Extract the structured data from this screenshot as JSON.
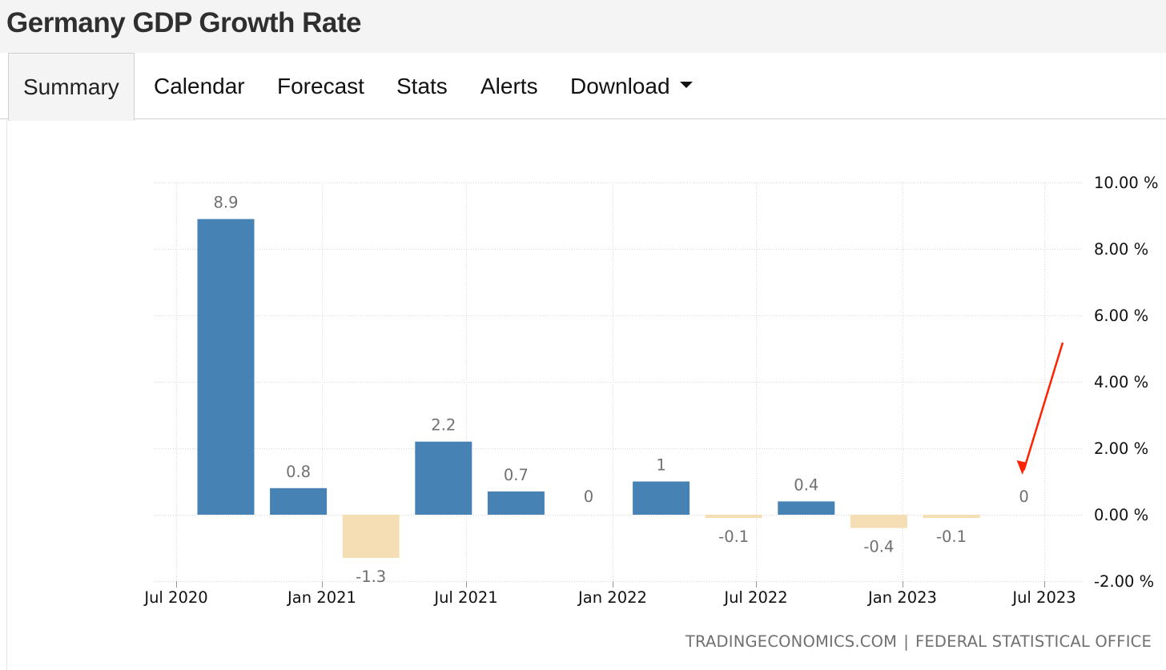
{
  "header": {
    "title": "Germany GDP Growth Rate"
  },
  "tabs": [
    {
      "label": "Summary",
      "active": true
    },
    {
      "label": "Calendar"
    },
    {
      "label": "Forecast"
    },
    {
      "label": "Stats"
    },
    {
      "label": "Alerts"
    },
    {
      "label": "Download",
      "dropdown": true
    }
  ],
  "chart_data": {
    "type": "bar",
    "title": "Germany GDP Growth Rate",
    "categories": [
      "Q3 2020",
      "Q4 2020",
      "Q1 2021",
      "Q2 2021",
      "Q3 2021",
      "Q4 2021",
      "Q1 2022",
      "Q2 2022",
      "Q3 2022",
      "Q4 2022",
      "Q1 2023",
      "Q2 2023"
    ],
    "values": [
      8.9,
      0.8,
      -1.3,
      2.2,
      0.7,
      0,
      1,
      -0.1,
      0.4,
      -0.4,
      -0.1,
      0
    ],
    "value_labels": [
      "8.9",
      "0.8",
      "-1.3",
      "2.2",
      "0.7",
      "0",
      "1",
      "-0.1",
      "0.4",
      "-0.4",
      "-0.1",
      "0"
    ],
    "x_tick_labels": [
      "Jul 2020",
      "Jan 2021",
      "Jul 2021",
      "Jan 2022",
      "Jul 2022",
      "Jan 2023",
      "Jul 2023"
    ],
    "y_tick_labels": [
      "10.00 %",
      "8.00 %",
      "6.00 %",
      "4.00 %",
      "2.00 %",
      "0.00 %",
      "-2.00 %"
    ],
    "ylim": [
      -2,
      10
    ],
    "y_ticks": [
      10,
      8,
      6,
      4,
      2,
      0,
      -2
    ],
    "grid": true,
    "y_axis_side": "right",
    "colors": {
      "positive": "#4682b4",
      "negative": "#f5deb3",
      "label": "#707070",
      "grid": "#d8d8d8",
      "annotation": "#ff2200"
    },
    "annotation": {
      "type": "arrow",
      "target": "Q2 2023"
    }
  },
  "footer": {
    "source_left": "TRADINGECONOMICS.COM",
    "separator": "|",
    "source_right": "FEDERAL STATISTICAL OFFICE"
  }
}
